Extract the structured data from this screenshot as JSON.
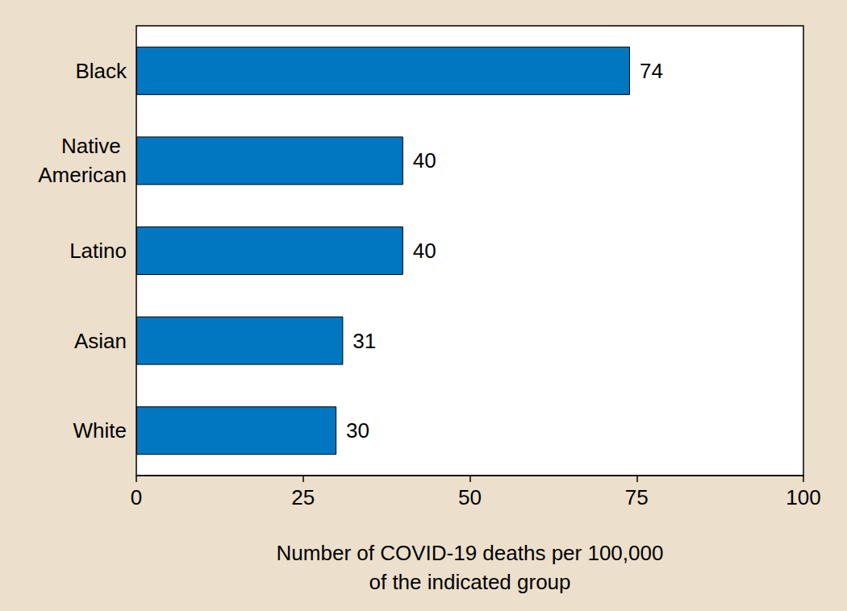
{
  "chart_data": {
    "type": "bar",
    "orientation": "horizontal",
    "xlabel": "Number of COVID-19 deaths per 100,000\nof the indicated group",
    "categories": [
      "Black",
      "Native American",
      "Latino",
      "Asian",
      "White"
    ],
    "values": [
      74,
      40,
      40,
      31,
      30
    ],
    "color": "#0077c0",
    "xlim": [
      0,
      100
    ],
    "xticks": [
      0,
      25,
      50,
      75,
      100
    ],
    "grid": false,
    "data_labels": true
  }
}
